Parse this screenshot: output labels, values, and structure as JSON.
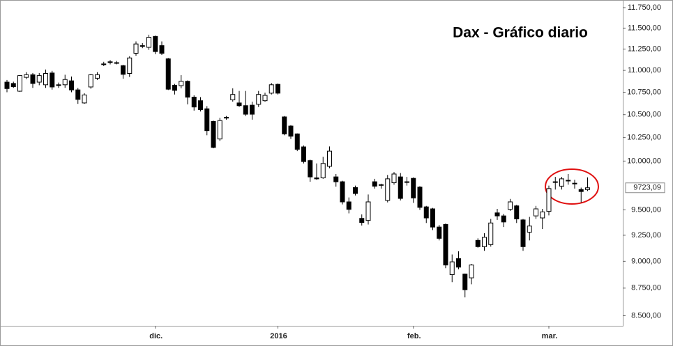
{
  "chart_data": {
    "type": "candlestick",
    "title": "Dax - Gráfico diario",
    "categories": [
      null,
      null,
      null,
      null,
      null,
      null,
      null,
      null,
      null,
      null,
      null,
      null,
      null,
      null,
      null,
      null,
      null,
      null,
      null,
      null,
      null,
      null,
      null,
      "dic.",
      null,
      null,
      null,
      null,
      null,
      null,
      null,
      null,
      null,
      null,
      null,
      null,
      null,
      null,
      null,
      null,
      null,
      null,
      "2016",
      null,
      null,
      null,
      null,
      null,
      null,
      null,
      null,
      null,
      null,
      null,
      null,
      null,
      null,
      null,
      null,
      null,
      null,
      null,
      null,
      "feb.",
      null,
      null,
      null,
      null,
      null,
      null,
      null,
      null,
      null,
      null,
      null,
      null,
      null,
      null,
      null,
      null,
      null,
      null,
      null,
      null,
      "mar.",
      null,
      null,
      null,
      null,
      null,
      null
    ],
    "open": [
      10865,
      10850,
      10762,
      10920,
      10950,
      10865,
      10835,
      10970,
      10835,
      10835,
      10880,
      10777,
      10630,
      10810,
      10910,
      11070,
      11095,
      11085,
      11055,
      10965,
      11200,
      11285,
      11270,
      11400,
      11290,
      11135,
      10830,
      10825,
      10875,
      10695,
      10655,
      10565,
      10425,
      10235,
      10465,
      10665,
      10630,
      10600,
      10605,
      10615,
      10655,
      10740,
      10840,
      10475,
      10375,
      10290,
      10150,
      10005,
      9825,
      9825,
      9945,
      9835,
      9785,
      9580,
      9725,
      9415,
      9395,
      9785,
      9755,
      9595,
      9775,
      9835,
      9785,
      9820,
      9730,
      9530,
      9510,
      9330,
      9355,
      8875,
      9025,
      8880,
      8845,
      9200,
      9140,
      9160,
      9470,
      9440,
      9505,
      9540,
      9400,
      9280,
      9440,
      9420,
      9485,
      9785,
      9740,
      9800,
      9770,
      9705,
      9705
    ],
    "high": [
      10890,
      10870,
      10945,
      10980,
      10970,
      10970,
      11010,
      10995,
      10860,
      10950,
      10930,
      10800,
      10740,
      10960,
      10980,
      11100,
      11120,
      11110,
      11065,
      11165,
      11340,
      11320,
      11420,
      11410,
      11340,
      11145,
      10845,
      10945,
      10885,
      10715,
      10695,
      10595,
      10435,
      10465,
      10485,
      10795,
      10765,
      10765,
      10645,
      10765,
      10745,
      10855,
      10850,
      10485,
      10385,
      10295,
      10165,
      10015,
      9975,
      10045,
      10155,
      9865,
      9795,
      9625,
      9745,
      9455,
      9655,
      9815,
      9765,
      9855,
      9885,
      9875,
      9835,
      9830,
      9740,
      9540,
      9520,
      9350,
      9365,
      9065,
      9095,
      8885,
      8975,
      9220,
      9270,
      9410,
      9510,
      9460,
      9610,
      9550,
      9410,
      9430,
      9540,
      9510,
      9745,
      9835,
      9835,
      9865,
      9805,
      9725,
      9830
    ],
    "low": [
      10750,
      10800,
      10755,
      10900,
      10800,
      10830,
      10800,
      10780,
      10800,
      10800,
      10750,
      10620,
      10620,
      10790,
      10890,
      11050,
      11070,
      11070,
      10905,
      10925,
      11170,
      11260,
      11240,
      11190,
      11180,
      10775,
      10725,
      10795,
      10615,
      10545,
      10535,
      10275,
      10135,
      10215,
      10445,
      10645,
      10585,
      10485,
      10445,
      10585,
      10645,
      10725,
      10725,
      10275,
      10235,
      10105,
      9975,
      9785,
      9805,
      9815,
      9925,
      9735,
      9555,
      9465,
      9645,
      9345,
      9355,
      9715,
      9715,
      9575,
      9755,
      9595,
      9745,
      9570,
      9500,
      9370,
      9300,
      9200,
      8935,
      8805,
      8925,
      8665,
      8785,
      9130,
      9100,
      9140,
      9400,
      9330,
      9490,
      9370,
      9100,
      9200,
      9410,
      9310,
      9445,
      9705,
      9705,
      9755,
      9715,
      9575,
      9690
    ],
    "close": [
      10792,
      10813,
      10940,
      10950,
      10850,
      10940,
      10965,
      10810,
      10830,
      10895,
      10777,
      10670,
      10720,
      10950,
      10950,
      11075,
      11100,
      11090,
      10955,
      11145,
      11310,
      11290,
      11390,
      11220,
      11200,
      10785,
      10772,
      10875,
      10695,
      10585,
      10555,
      10325,
      10145,
      10435,
      10470,
      10725,
      10600,
      10505,
      10505,
      10725,
      10715,
      10835,
      10740,
      10290,
      10265,
      10125,
      9995,
      9835,
      9815,
      9975,
      10105,
      9785,
      9580,
      9505,
      9665,
      9375,
      9580,
      9740,
      9750,
      9815,
      9865,
      9615,
      9780,
      9620,
      9525,
      9420,
      9330,
      9220,
      8965,
      8995,
      8945,
      8735,
      8965,
      9140,
      9230,
      9370,
      9440,
      9380,
      9580,
      9410,
      9140,
      9340,
      9510,
      9480,
      9715,
      9780,
      9815,
      9795,
      9765,
      9685,
      9723.09
    ],
    "up_color": "#ffffff",
    "down_color": "#000000",
    "ylim": [
      8410,
      11845
    ],
    "log_scale": true,
    "yticks": [
      {
        "value": 11750,
        "label": "11.750,00"
      },
      {
        "value": 11500,
        "label": "11.500,00"
      },
      {
        "value": 11250,
        "label": "11.250,00"
      },
      {
        "value": 11000,
        "label": "11.000,00"
      },
      {
        "value": 10750,
        "label": "10.750,00"
      },
      {
        "value": 10500,
        "label": "10.500,00"
      },
      {
        "value": 10250,
        "label": "10.250,00"
      },
      {
        "value": 10000,
        "label": "10.000,00"
      },
      {
        "value": 9500,
        "label": "9.500,00"
      },
      {
        "value": 9250,
        "label": "9.250,00"
      },
      {
        "value": 9000,
        "label": "9.000,00"
      },
      {
        "value": 8750,
        "label": "8.750,00"
      },
      {
        "value": 8500,
        "label": "8.500,00"
      }
    ],
    "last_price": {
      "value": 9723.09,
      "label": "9723,09"
    }
  }
}
